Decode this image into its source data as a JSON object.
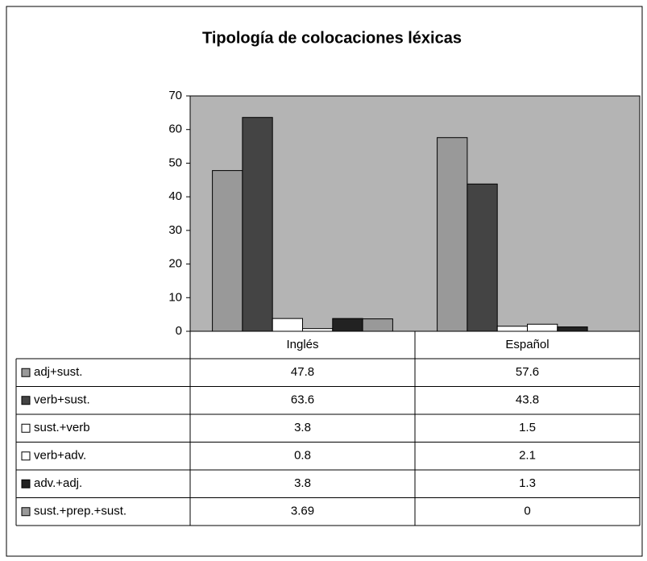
{
  "chart_data": {
    "type": "bar",
    "title": "Tipología de colocaciones léxicas",
    "categories": [
      "Inglés",
      "Español"
    ],
    "series": [
      {
        "name": "adj+sust.",
        "color": "#999999",
        "values": [
          47.8,
          57.6
        ]
      },
      {
        "name": "verb+sust.",
        "color": "#444444",
        "values": [
          63.6,
          43.8
        ]
      },
      {
        "name": "sust.+verb",
        "color": "#ffffff",
        "values": [
          3.8,
          1.5
        ]
      },
      {
        "name": "verb+adv.",
        "color": "#ffffff",
        "values": [
          0.8,
          2.1
        ]
      },
      {
        "name": "adv.+adj.",
        "color": "#222222",
        "values": [
          3.8,
          1.3
        ]
      },
      {
        "name": "sust.+prep.+sust.",
        "color": "#999999",
        "values": [
          3.69,
          0
        ]
      }
    ],
    "ylim": [
      0,
      70
    ],
    "yticks": [
      0,
      10,
      20,
      30,
      40,
      50,
      60,
      70
    ],
    "plot_background": "#b4b4b4",
    "grid": false
  }
}
